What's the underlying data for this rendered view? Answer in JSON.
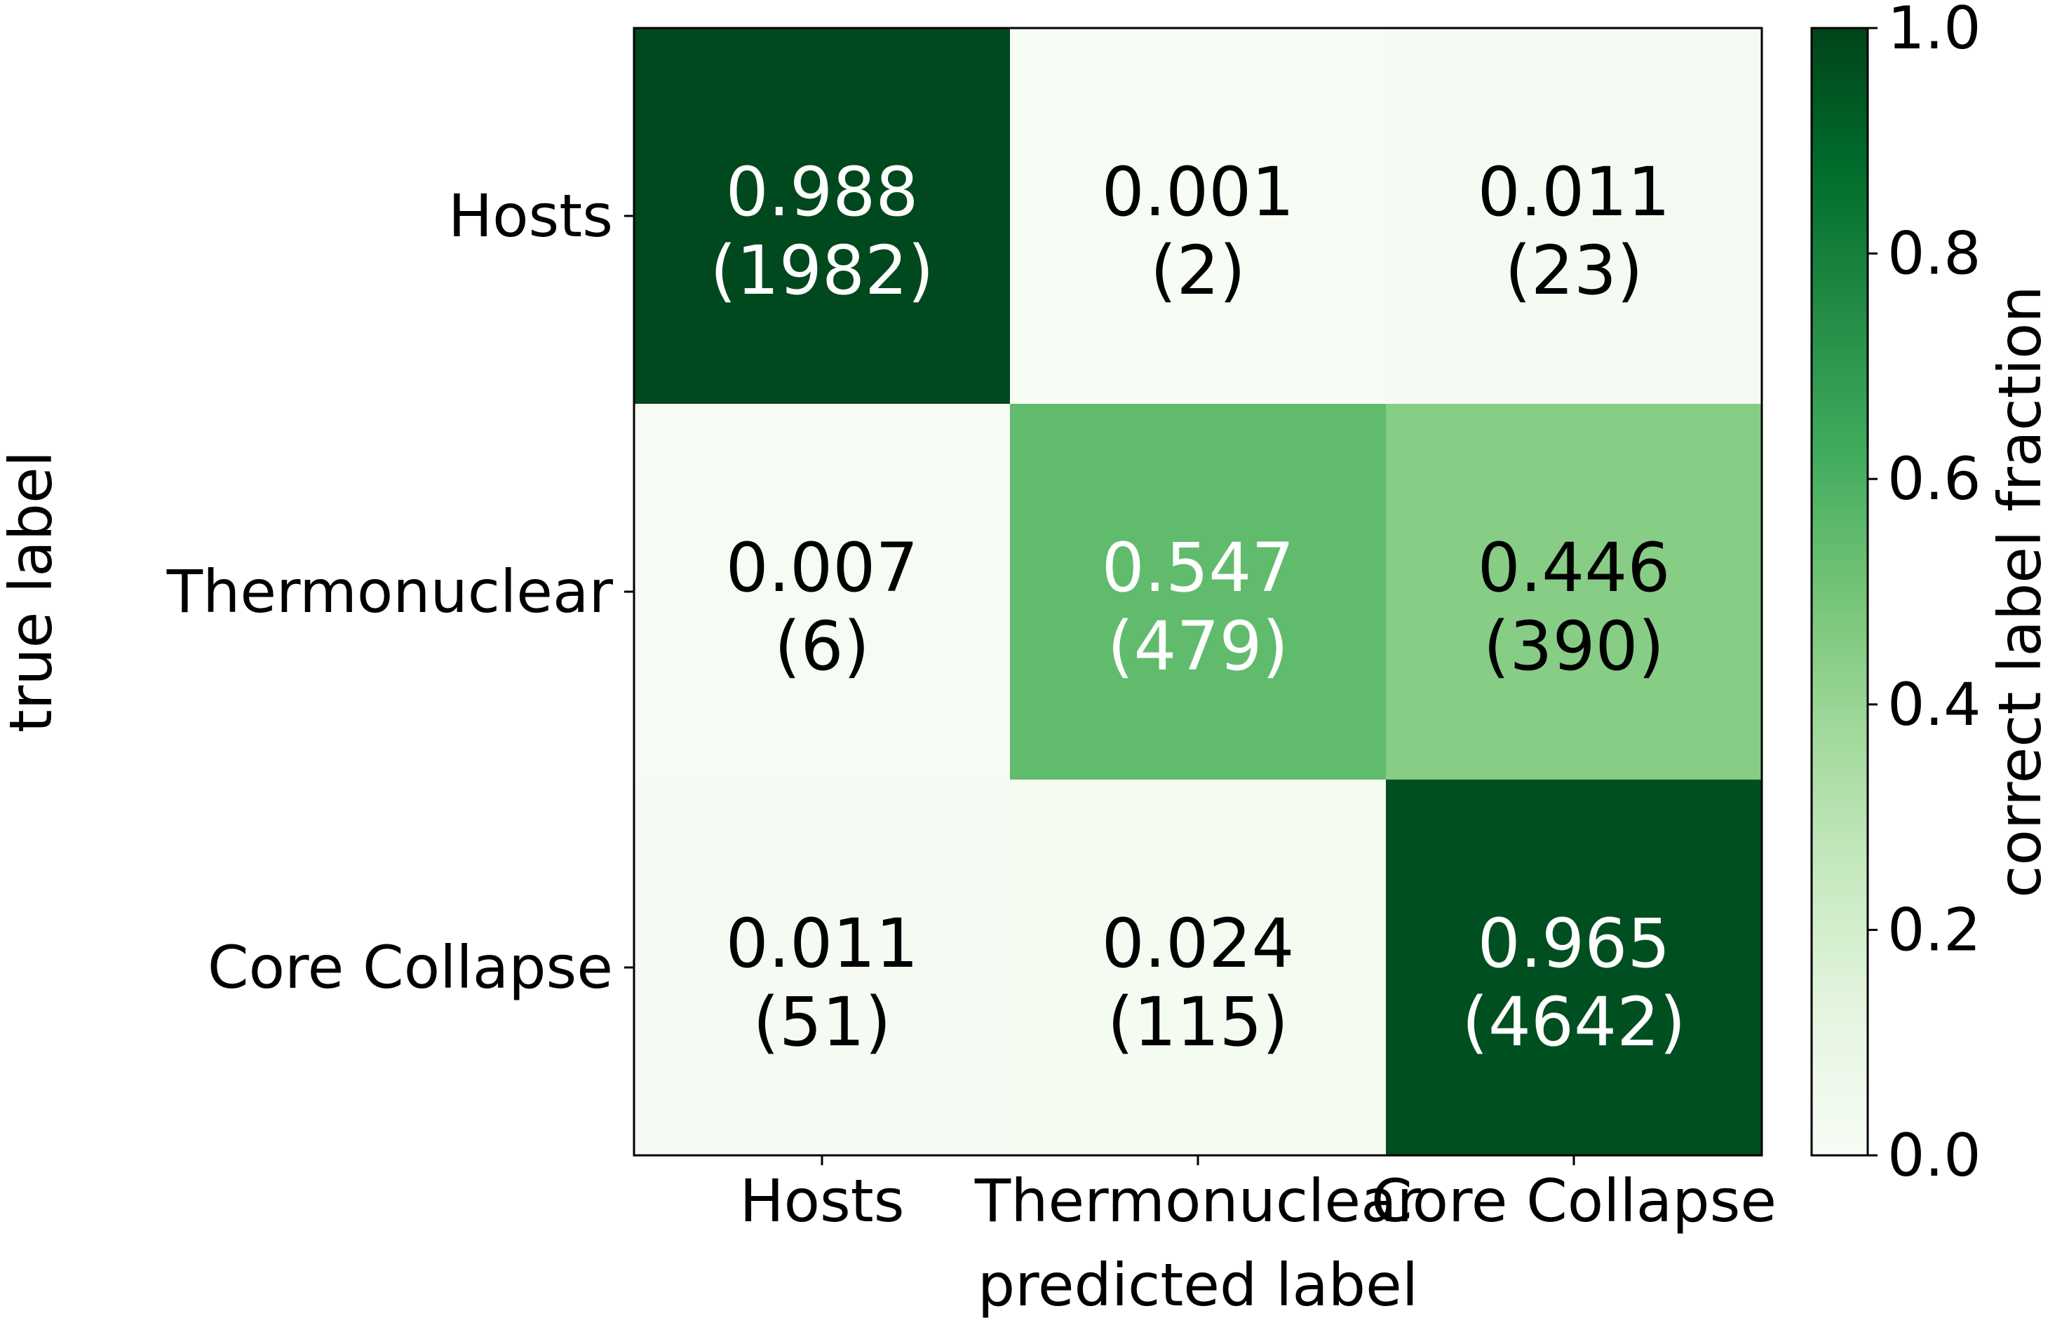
{
  "chart_data": {
    "type": "heatmap",
    "xlabel": "predicted label",
    "ylabel": "true label",
    "x_categories": [
      "Hosts",
      "Thermonuclear",
      "Core Collapse"
    ],
    "y_categories": [
      "Hosts",
      "Thermonuclear",
      "Core Collapse"
    ],
    "values": [
      [
        0.988,
        0.001,
        0.011
      ],
      [
        0.007,
        0.547,
        0.446
      ],
      [
        0.011,
        0.024,
        0.965
      ]
    ],
    "counts": [
      [
        1982,
        2,
        23
      ],
      [
        6,
        479,
        390
      ],
      [
        51,
        115,
        4642
      ]
    ],
    "cell_value_labels": [
      [
        "0.988",
        "0.001",
        "0.011"
      ],
      [
        "0.007",
        "0.547",
        "0.446"
      ],
      [
        "0.011",
        "0.024",
        "0.965"
      ]
    ],
    "cell_count_labels": [
      [
        "(1982)",
        "(2)",
        "(23)"
      ],
      [
        "(6)",
        "(479)",
        "(390)"
      ],
      [
        "(51)",
        "(115)",
        "(4642)"
      ]
    ],
    "colormap": "Greens",
    "colorbar": {
      "label": "correct label fraction",
      "range": [
        0.0,
        1.0
      ],
      "ticks": [
        0.0,
        0.2,
        0.4,
        0.6,
        0.8,
        1.0
      ],
      "tick_labels": [
        "0.0",
        "0.2",
        "0.4",
        "0.6",
        "0.8",
        "1.0"
      ]
    },
    "colors": {
      "low": "#f7fcf5",
      "high": "#00441b",
      "text_dark": "#000000",
      "text_light": "#ffffff"
    }
  }
}
